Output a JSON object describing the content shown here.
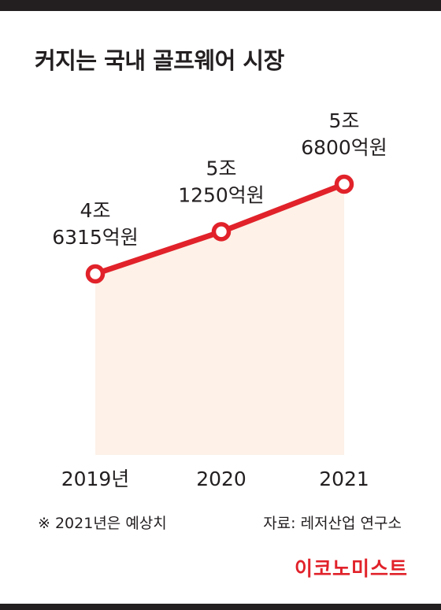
{
  "title": "커지는 국내 골프웨어 시장",
  "chart_data": {
    "type": "line",
    "title": "커지는 국내 골프웨어 시장",
    "categories": [
      "2019년",
      "2020",
      "2021"
    ],
    "values": [
      46315,
      51250,
      56800
    ],
    "data_labels": [
      [
        "4조",
        "6315억원"
      ],
      [
        "5조",
        "1250억원"
      ],
      [
        "5조",
        "6800억원"
      ]
    ],
    "ylim": [
      0,
      60000
    ],
    "grid": false,
    "legend": "none",
    "line_color": "#e1222a",
    "fill_color": "#fdf1e8"
  },
  "footnote": "※ 2021년은 예상치",
  "source": "자료: 레저산업 연구소",
  "brand": "이코노미스트"
}
